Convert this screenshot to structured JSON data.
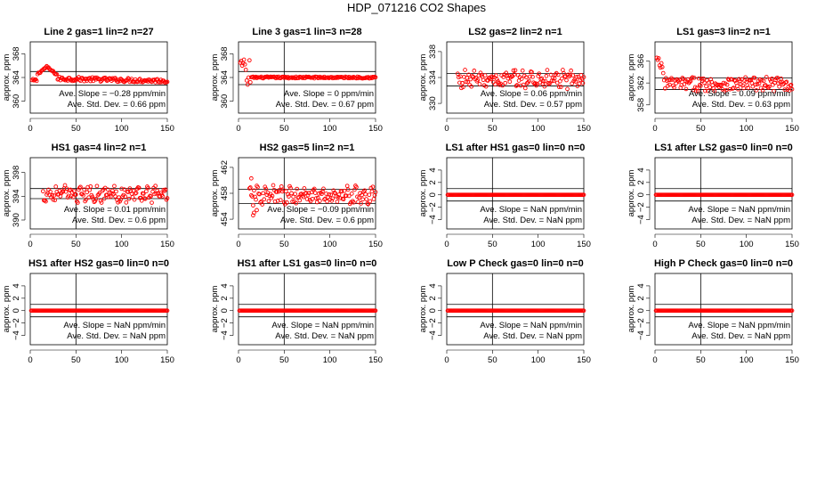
{
  "title": "HDP_071216  CO2 Shapes",
  "chart_data": [
    {
      "type": "scatter",
      "title": "Line 2 gas=1 lin=2 n=27",
      "ylabel": "approx. ppm",
      "xlim": [
        0,
        150
      ],
      "ylim": [
        358,
        370
      ],
      "yticks": [
        "360",
        "364",
        "368"
      ],
      "yticks_v": [
        360,
        364,
        368
      ],
      "xticks": [
        0,
        50,
        100,
        150
      ],
      "vline": 50,
      "hlines": [
        365,
        362.7
      ],
      "slope_text": "Ave. Slope =  −0.28  ppm/min",
      "sd_text": "Ave. Std. Dev. =  0.66  ppm",
      "points": {
        "mode": "rise",
        "n": 150,
        "start": 2,
        "base": 363.8,
        "spread": 0.35,
        "peak_at": 18,
        "peak": 365.8,
        "early": 363.5
      }
    },
    {
      "type": "scatter",
      "title": "Line 3 gas=1 lin=3 n=28",
      "ylabel": "approx. ppm",
      "xlim": [
        0,
        150
      ],
      "ylim": [
        358,
        370
      ],
      "yticks": [
        "360",
        "364",
        "368"
      ],
      "yticks_v": [
        360,
        364,
        368
      ],
      "xticks": [
        0,
        50,
        100,
        150
      ],
      "vline": 50,
      "hlines": [
        365,
        362.8
      ],
      "slope_text": "Ave. Slope =  0  ppm/min",
      "sd_text": "Ave. Std. Dev. =  0.67  ppm",
      "points": {
        "mode": "early",
        "n": 150,
        "start": 2,
        "base": 364.0,
        "spread": 0.15,
        "early_vals": [
          366.5,
          366.8,
          366.0,
          366.4,
          367.0,
          366.2,
          365.3,
          363.5,
          362.8,
          364.0,
          366.9,
          363.2
        ]
      }
    },
    {
      "type": "scatter",
      "title": "LS2 gas=2 lin=2 n=1",
      "ylabel": "approx. ppm",
      "xlim": [
        0,
        150
      ],
      "ylim": [
        328.5,
        339.5
      ],
      "yticks": [
        "330",
        "334",
        "338"
      ],
      "yticks_v": [
        330,
        334,
        338
      ],
      "xticks": [
        0,
        50,
        100,
        150
      ],
      "vline": 50,
      "hlines": [
        334.6,
        332.7
      ],
      "slope_text": "Ave. Slope =  0.06  ppm/min",
      "sd_text": "Ave. Std. Dev. =  0.57  ppm",
      "points": {
        "mode": "noise",
        "n": 150,
        "start": 12,
        "base": 333.7,
        "spread": 1.2
      }
    },
    {
      "type": "scatter",
      "title": "LS1 gas=3 lin=2 n=1",
      "ylabel": "approx. ppm",
      "xlim": [
        0,
        150
      ],
      "ylim": [
        356.5,
        369.5
      ],
      "yticks": [
        "358",
        "362",
        "366"
      ],
      "yticks_v": [
        358,
        362,
        366
      ],
      "xticks": [
        0,
        50,
        100,
        150
      ],
      "vline": 50,
      "hlines": [
        362.9,
        360.8
      ],
      "slope_text": "Ave. Slope =  0.09  ppm/min",
      "sd_text": "Ave. Std. Dev. =  0.63  ppm",
      "points": {
        "mode": "early",
        "n": 150,
        "start": 2,
        "base": 361.8,
        "spread": 1.3,
        "early_vals": [
          366.6,
          366.2,
          366.5,
          365.2,
          364.8,
          365.6,
          364.9,
          363.8,
          362.5,
          361.0,
          362.9
        ]
      }
    },
    {
      "type": "scatter",
      "title": "HS1 gas=4 lin=2 n=1",
      "ylabel": "approx. ppm",
      "xlim": [
        0,
        150
      ],
      "ylim": [
        388.5,
        400.5
      ],
      "yticks": [
        "390",
        "394",
        "398"
      ],
      "yticks_v": [
        390,
        394,
        398
      ],
      "xticks": [
        0,
        50,
        100,
        150
      ],
      "vline": 50,
      "hlines": [
        395.3,
        393.6
      ],
      "slope_text": "Ave. Slope =  0.01  ppm/min",
      "sd_text": "Ave. Std. Dev. =  0.6  ppm",
      "points": {
        "mode": "noise",
        "n": 150,
        "start": 14,
        "base": 394.4,
        "spread": 1.1
      }
    },
    {
      "type": "scatter",
      "title": "HS2 gas=5 lin=2 n=1",
      "ylabel": "approx. ppm",
      "xlim": [
        0,
        150
      ],
      "ylim": [
        452.5,
        463.5
      ],
      "yticks": [
        "454",
        "458",
        "462"
      ],
      "yticks_v": [
        454,
        458,
        462
      ],
      "xticks": [
        0,
        50,
        100,
        150
      ],
      "vline": 50,
      "hlines": [
        458.6,
        456.4
      ],
      "slope_text": "Ave. Slope =  −0.09  ppm/min",
      "sd_text": "Ave. Std. Dev. =  0.6  ppm",
      "points": {
        "mode": "noise",
        "n": 150,
        "start": 12,
        "base": 457.6,
        "spread": 1.2,
        "extras": [
          [
            14,
            460.3
          ],
          [
            17,
            455.0
          ],
          [
            16,
            454.6
          ],
          [
            20,
            455.4
          ]
        ]
      }
    },
    {
      "type": "scatter",
      "title": "LS1 after HS1 gas=0 lin=0 n=0",
      "ylabel": "approx. ppm",
      "xlim": [
        0,
        150
      ],
      "ylim": [
        -5.5,
        6
      ],
      "yticks": [
        "−4",
        "−2",
        "0",
        "2",
        "4"
      ],
      "yticks_v": [
        -4,
        -2,
        0,
        2,
        4
      ],
      "xticks": [
        0,
        50,
        100,
        150
      ],
      "vline": 50,
      "hlines": [
        1,
        -1
      ],
      "slope_text": "Ave. Slope =  NaN  ppm/min",
      "sd_text": "Ave. Std. Dev. =  NaN  ppm",
      "points": {
        "mode": "zero",
        "n": 150,
        "start": 1,
        "base": 0,
        "spread": 0
      }
    },
    {
      "type": "scatter",
      "title": "LS1 after LS2 gas=0 lin=0 n=0",
      "ylabel": "approx. ppm",
      "xlim": [
        0,
        150
      ],
      "ylim": [
        -5.5,
        6
      ],
      "yticks": [
        "−4",
        "−2",
        "0",
        "2",
        "4"
      ],
      "yticks_v": [
        -4,
        -2,
        0,
        2,
        4
      ],
      "xticks": [
        0,
        50,
        100,
        150
      ],
      "vline": 50,
      "hlines": [
        1,
        -1
      ],
      "slope_text": "Ave. Slope =  NaN  ppm/min",
      "sd_text": "Ave. Std. Dev. =  NaN  ppm",
      "points": {
        "mode": "zero",
        "n": 150,
        "start": 1,
        "base": 0,
        "spread": 0
      }
    },
    {
      "type": "scatter",
      "title": "HS1 after HS2 gas=0 lin=0 n=0",
      "ylabel": "approx. ppm",
      "xlim": [
        0,
        150
      ],
      "ylim": [
        -5.5,
        6
      ],
      "yticks": [
        "−4",
        "−2",
        "0",
        "2",
        "4"
      ],
      "yticks_v": [
        -4,
        -2,
        0,
        2,
        4
      ],
      "xticks": [
        0,
        50,
        100,
        150
      ],
      "vline": 50,
      "hlines": [
        1,
        -1
      ],
      "slope_text": "Ave. Slope =  NaN  ppm/min",
      "sd_text": "Ave. Std. Dev. =  NaN  ppm",
      "points": {
        "mode": "zero",
        "n": 150,
        "start": 1,
        "base": 0,
        "spread": 0
      }
    },
    {
      "type": "scatter",
      "title": "HS1 after LS1 gas=0 lin=0 n=0",
      "ylabel": "approx. ppm",
      "xlim": [
        0,
        150
      ],
      "ylim": [
        -5.5,
        6
      ],
      "yticks": [
        "−4",
        "−2",
        "0",
        "2",
        "4"
      ],
      "yticks_v": [
        -4,
        -2,
        0,
        2,
        4
      ],
      "xticks": [
        0,
        50,
        100,
        150
      ],
      "vline": 50,
      "hlines": [
        1,
        -1
      ],
      "slope_text": "Ave. Slope =  NaN  ppm/min",
      "sd_text": "Ave. Std. Dev. =  NaN  ppm",
      "points": {
        "mode": "zero",
        "n": 150,
        "start": 1,
        "base": 0,
        "spread": 0
      }
    },
    {
      "type": "scatter",
      "title": "Low P Check gas=0 lin=0 n=0",
      "ylabel": "approx. ppm",
      "xlim": [
        0,
        150
      ],
      "ylim": [
        -5.5,
        6
      ],
      "yticks": [
        "−4",
        "−2",
        "0",
        "2",
        "4"
      ],
      "yticks_v": [
        -4,
        -2,
        0,
        2,
        4
      ],
      "xticks": [
        0,
        50,
        100,
        150
      ],
      "vline": 50,
      "hlines": [
        1,
        -1
      ],
      "slope_text": "Ave. Slope =  NaN  ppm/min",
      "sd_text": "Ave. Std. Dev. =  NaN  ppm",
      "points": {
        "mode": "zero",
        "n": 150,
        "start": 1,
        "base": 0,
        "spread": 0
      }
    },
    {
      "type": "scatter",
      "title": "High P Check gas=0 lin=0 n=0",
      "ylabel": "approx. ppm",
      "xlim": [
        0,
        150
      ],
      "ylim": [
        -5.5,
        6
      ],
      "yticks": [
        "−4",
        "−2",
        "0",
        "2",
        "4"
      ],
      "yticks_v": [
        -4,
        -2,
        0,
        2,
        4
      ],
      "xticks": [
        0,
        50,
        100,
        150
      ],
      "vline": 50,
      "hlines": [
        1,
        -1
      ],
      "slope_text": "Ave. Slope =  NaN  ppm/min",
      "sd_text": "Ave. Std. Dev. =  NaN  ppm",
      "points": {
        "mode": "zero",
        "n": 150,
        "start": 1,
        "base": 0,
        "spread": 0
      }
    }
  ],
  "colors": {
    "points": "#ff0000",
    "axes": "#000000"
  }
}
